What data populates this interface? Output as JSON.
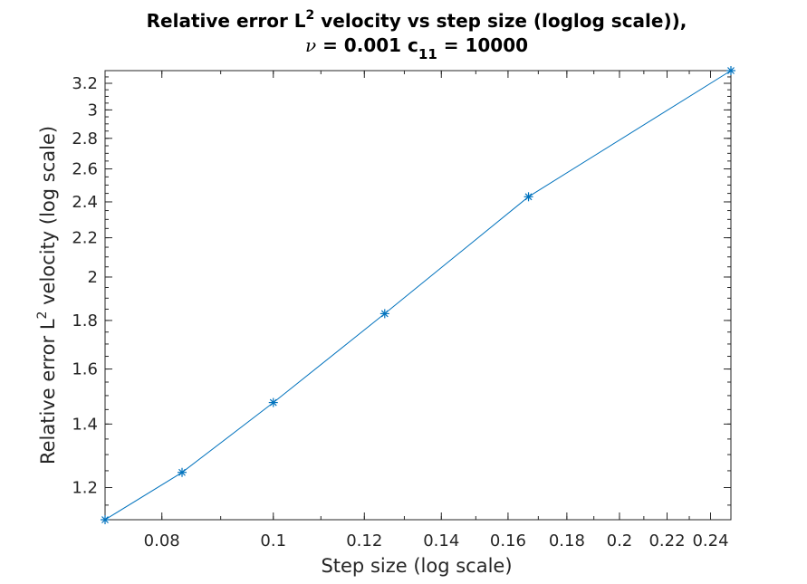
{
  "chart_data": {
    "type": "line",
    "title_line1_pre": "Relative error L",
    "title_line1_sup": "2",
    "title_line1_post": " velocity vs step size (loglog scale)),",
    "title_line2_nu": "ν",
    "title_line2_mid": " = 0.001 c",
    "title_line2_sub": "11",
    "title_line2_post": " = 10000",
    "xlabel": "Step size (log scale)",
    "ylabel_pre": "Relative error L",
    "ylabel_sup": "2",
    "ylabel_post": " velocity (log scale)",
    "xscale": "log",
    "yscale": "log",
    "xlim": [
      0.0714,
      0.25
    ],
    "ylim": [
      1.11,
      3.3
    ],
    "xticks": [
      0.08,
      0.1,
      0.12,
      0.14,
      0.16,
      0.18,
      0.2,
      0.22,
      0.24
    ],
    "xtick_labels": [
      "0.08",
      "0.1",
      "0.12",
      "0.14",
      "0.16",
      "0.18",
      "0.2",
      "0.22",
      "0.24"
    ],
    "yticks": [
      1.2,
      1.4,
      1.6,
      1.8,
      2,
      2.2,
      2.4,
      2.6,
      2.8,
      3,
      3.2
    ],
    "ytick_labels": [
      "1.2",
      "1.4",
      "1.6",
      "1.8",
      "2",
      "2.2",
      "2.4",
      "2.6",
      "2.8",
      "3",
      "3.2"
    ],
    "grid": false,
    "series": [
      {
        "x": [
          0.0714,
          0.0833,
          0.1,
          0.125,
          0.1667,
          0.25
        ],
        "y": [
          1.11,
          1.245,
          1.475,
          1.83,
          2.43,
          3.3
        ],
        "color": "#0072BD",
        "marker": "asterisk"
      }
    ]
  }
}
